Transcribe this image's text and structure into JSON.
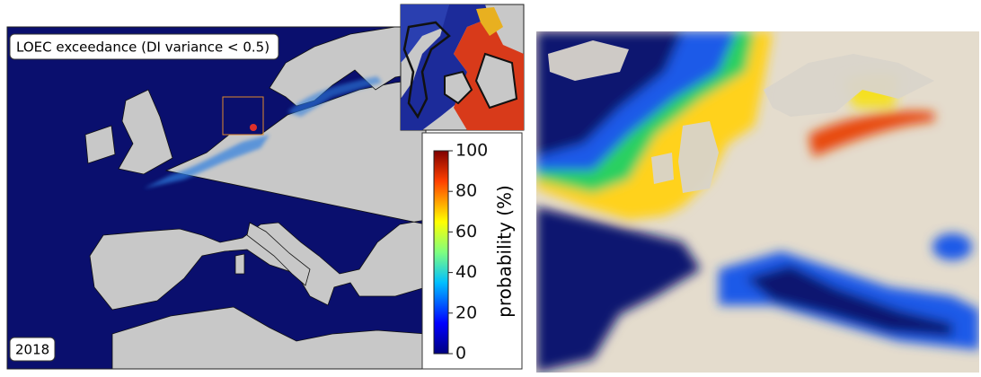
{
  "left_map": {
    "title": "LOEC exceedance (DI variance < 0.5)",
    "year": "2018"
  },
  "colorbar": {
    "label": "probability (%)",
    "lim": [
      0,
      100
    ],
    "ticks": [
      0,
      20,
      40,
      60,
      80,
      100
    ]
  }
}
